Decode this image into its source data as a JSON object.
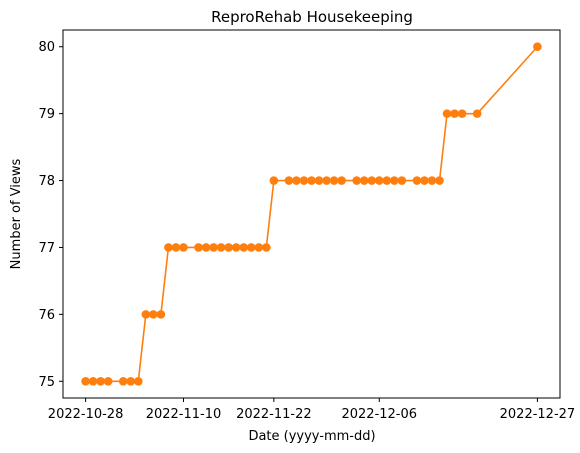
{
  "chart_data": {
    "type": "line",
    "title": "ReproRehab Housekeeping",
    "xlabel": "Date (yyyy-mm-dd)",
    "ylabel": "Number of Views",
    "x_ticks": [
      "2022-10-28",
      "2022-11-10",
      "2022-11-22",
      "2022-12-06",
      "2022-12-27"
    ],
    "y_ticks": [
      75,
      76,
      77,
      78,
      79,
      80
    ],
    "xlim": [
      "2022-10-25",
      "2022-12-30"
    ],
    "ylim": [
      74.75,
      80.25
    ],
    "grid": false,
    "colors": {
      "series": "#ff7f0e",
      "axes": "#000000"
    },
    "series": [
      {
        "x": [
          "2022-10-28",
          "2022-10-29",
          "2022-10-30",
          "2022-10-31",
          "2022-11-02",
          "2022-11-03",
          "2022-11-04",
          "2022-11-05",
          "2022-11-06",
          "2022-11-07",
          "2022-11-08",
          "2022-11-09",
          "2022-11-10",
          "2022-11-12",
          "2022-11-13",
          "2022-11-14",
          "2022-11-15",
          "2022-11-16",
          "2022-11-17",
          "2022-11-18",
          "2022-11-19",
          "2022-11-20",
          "2022-11-21",
          "2022-11-22",
          "2022-11-24",
          "2022-11-25",
          "2022-11-26",
          "2022-11-27",
          "2022-11-28",
          "2022-11-29",
          "2022-11-30",
          "2022-12-01",
          "2022-12-03",
          "2022-12-04",
          "2022-12-05",
          "2022-12-06",
          "2022-12-07",
          "2022-12-08",
          "2022-12-09",
          "2022-12-11",
          "2022-12-12",
          "2022-12-13",
          "2022-12-14",
          "2022-12-15",
          "2022-12-16",
          "2022-12-17",
          "2022-12-19",
          "2022-12-27"
        ],
        "y": [
          75,
          75,
          75,
          75,
          75,
          75,
          75,
          76,
          76,
          76,
          77,
          77,
          77,
          77,
          77,
          77,
          77,
          77,
          77,
          77,
          77,
          77,
          77,
          78,
          78,
          78,
          78,
          78,
          78,
          78,
          78,
          78,
          78,
          78,
          78,
          78,
          78,
          78,
          78,
          78,
          78,
          78,
          78,
          79,
          79,
          79,
          79,
          80
        ]
      }
    ]
  }
}
